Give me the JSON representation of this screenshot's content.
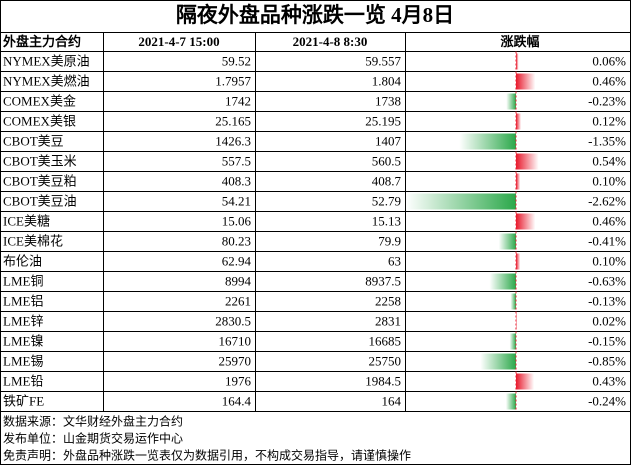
{
  "title": "隔夜外盘品种涨跌一览 4月8日",
  "table": {
    "columns": [
      "外盘主力合约",
      "2021-4-7 15:00",
      "2021-4-8 8:30",
      "涨跌幅"
    ],
    "rows": [
      {
        "name": "NYMEX美原油",
        "prev": "59.52",
        "curr": "59.557",
        "change": 0.06,
        "change_label": "0.06%"
      },
      {
        "name": "NYMEX美燃油",
        "prev": "1.7957",
        "curr": "1.804",
        "change": 0.46,
        "change_label": "0.46%"
      },
      {
        "name": "COMEX美金",
        "prev": "1742",
        "curr": "1738",
        "change": -0.23,
        "change_label": "-0.23%"
      },
      {
        "name": "COMEX美银",
        "prev": "25.165",
        "curr": "25.195",
        "change": 0.12,
        "change_label": "0.12%"
      },
      {
        "name": "CBOT美豆",
        "prev": "1426.3",
        "curr": "1407",
        "change": -1.35,
        "change_label": "-1.35%"
      },
      {
        "name": "CBOT美玉米",
        "prev": "557.5",
        "curr": "560.5",
        "change": 0.54,
        "change_label": "0.54%"
      },
      {
        "name": "CBOT美豆粕",
        "prev": "408.3",
        "curr": "408.7",
        "change": 0.1,
        "change_label": "0.10%"
      },
      {
        "name": "CBOT美豆油",
        "prev": "54.21",
        "curr": "52.79",
        "change": -2.62,
        "change_label": "-2.62%"
      },
      {
        "name": "ICE美糖",
        "prev": "15.06",
        "curr": "15.13",
        "change": 0.46,
        "change_label": "0.46%"
      },
      {
        "name": "ICE美棉花",
        "prev": "80.23",
        "curr": "79.9",
        "change": -0.41,
        "change_label": "-0.41%"
      },
      {
        "name": "布伦油",
        "prev": "62.94",
        "curr": "63",
        "change": 0.1,
        "change_label": "0.10%"
      },
      {
        "name": "LME铜",
        "prev": "8994",
        "curr": "8937.5",
        "change": -0.63,
        "change_label": "-0.63%"
      },
      {
        "name": "LME铝",
        "prev": "2261",
        "curr": "2258",
        "change": -0.13,
        "change_label": "-0.13%"
      },
      {
        "name": "LME锌",
        "prev": "2830.5",
        "curr": "2831",
        "change": 0.02,
        "change_label": "0.02%"
      },
      {
        "name": "LME镍",
        "prev": "16710",
        "curr": "16685",
        "change": -0.15,
        "change_label": "-0.15%"
      },
      {
        "name": "LME锡",
        "prev": "25970",
        "curr": "25750",
        "change": -0.85,
        "change_label": "-0.85%"
      },
      {
        "name": "LME铅",
        "prev": "1976",
        "curr": "1984.5",
        "change": 0.43,
        "change_label": "0.43%"
      },
      {
        "name": "铁矿FE",
        "prev": "164.4",
        "curr": "164",
        "change": -0.24,
        "change_label": "-0.24%"
      }
    ]
  },
  "footer": [
    "数据来源：文华财经外盘主力合约",
    "发布单位：山金期货交易运作中心",
    "免责声明：外盘品种涨跌一览表仅为数据引用，不构成交易指导，请谨慎操作"
  ]
}
